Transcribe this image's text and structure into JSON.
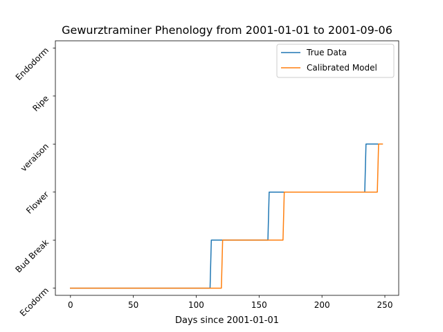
{
  "chart_data": {
    "type": "line",
    "title": "Gewurztraminer Phenology from 2001-01-01 to 2001-09-06",
    "xlabel": "Days since 2001-01-01",
    "ylabel": "",
    "xlim": [
      -12,
      261
    ],
    "ylim": [
      -0.15,
      5.15
    ],
    "xticks": [
      0,
      50,
      100,
      150,
      200,
      250
    ],
    "yticks": [
      {
        "value": 0,
        "label": "Ecodorm"
      },
      {
        "value": 1,
        "label": "Bud Break"
      },
      {
        "value": 2,
        "label": "Flower"
      },
      {
        "value": 3,
        "label": "veraison"
      },
      {
        "value": 4,
        "label": "Ripe"
      },
      {
        "value": 5,
        "label": "Endodorm"
      }
    ],
    "legend_position": "top-right",
    "series": [
      {
        "name": "True Data",
        "color": "#1f77b4",
        "points": [
          [
            0,
            0
          ],
          [
            111,
            0
          ],
          [
            112,
            1
          ],
          [
            157,
            1
          ],
          [
            158,
            2
          ],
          [
            234,
            2
          ],
          [
            235,
            3
          ],
          [
            248,
            3
          ]
        ]
      },
      {
        "name": "Calibrated Model",
        "color": "#ff7f0e",
        "points": [
          [
            0,
            0
          ],
          [
            120,
            0
          ],
          [
            121,
            1
          ],
          [
            169,
            1
          ],
          [
            170,
            2
          ],
          [
            244,
            2
          ],
          [
            245,
            3
          ],
          [
            248,
            3
          ]
        ]
      }
    ]
  }
}
